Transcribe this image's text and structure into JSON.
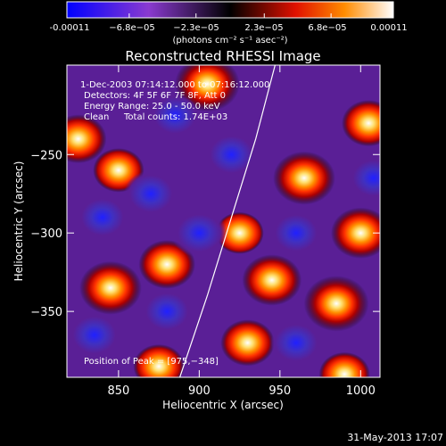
{
  "colorbar": {
    "ticks": [
      "-0.00011",
      "−6.8e−05",
      "−2.3e−05",
      "2.3e−05",
      "6.8e−05",
      "0.00011"
    ],
    "unit_label": "(photons cm⁻² s⁻¹ asec⁻²)"
  },
  "chart_data": {
    "type": "heatmap",
    "title": "Reconstructed RHESSI Image",
    "xlabel": "Heliocentric X (arcsec)",
    "ylabel": "Heliocentric Y (arcsec)",
    "xlim": [
      818,
      1012
    ],
    "ylim": [
      -392,
      -193
    ],
    "x_ticks": [
      850,
      900,
      950,
      1000
    ],
    "y_ticks": [
      -250,
      -300,
      -350
    ],
    "x_tick_labels": [
      "850",
      "900",
      "950",
      "1000"
    ],
    "y_tick_labels": [
      "−250",
      "−300",
      "−350"
    ],
    "value_range": [
      -0.00011,
      0.00011
    ],
    "info": {
      "time_range": "1-Dec-2003 07:14:12.000 to 07:16:12.000",
      "detectors": "Detectors: 4F 5F 6F 7F 8F, Att 0",
      "energy": "Energy Range: 25.0 - 50.0 keV",
      "clean": "Clean",
      "counts": "Total counts: 1.74E+03",
      "peak": "Position of Peak = [975,−348]"
    },
    "peak": [
      975,
      -348
    ],
    "limb_curve": [
      [
        947,
        -193
      ],
      [
        935,
        -240
      ],
      [
        920,
        -290
      ],
      [
        905,
        -340
      ],
      [
        888,
        -392
      ]
    ],
    "sources": [
      {
        "x": 905,
        "y": -205,
        "v": 1.0
      },
      {
        "x": 965,
        "y": -265,
        "v": 0.9
      },
      {
        "x": 985,
        "y": -345,
        "v": 1.0
      },
      {
        "x": 1000,
        "y": -300,
        "v": 0.8
      },
      {
        "x": 945,
        "y": -330,
        "v": 0.8
      },
      {
        "x": 845,
        "y": -335,
        "v": 0.9
      },
      {
        "x": 880,
        "y": -320,
        "v": 0.7
      },
      {
        "x": 825,
        "y": -240,
        "v": 0.7
      },
      {
        "x": 850,
        "y": -260,
        "v": 0.5
      },
      {
        "x": 930,
        "y": -370,
        "v": 0.6
      },
      {
        "x": 1005,
        "y": -230,
        "v": 0.6
      },
      {
        "x": 925,
        "y": -300,
        "v": 0.4
      },
      {
        "x": 875,
        "y": -385,
        "v": 0.5
      },
      {
        "x": 990,
        "y": -390,
        "v": 0.5
      },
      {
        "x": 870,
        "y": -275,
        "v": -0.6
      },
      {
        "x": 900,
        "y": -300,
        "v": -0.7
      },
      {
        "x": 840,
        "y": -290,
        "v": -0.5
      },
      {
        "x": 920,
        "y": -250,
        "v": -0.6
      },
      {
        "x": 960,
        "y": -300,
        "v": -0.4
      },
      {
        "x": 880,
        "y": -350,
        "v": -0.5
      },
      {
        "x": 835,
        "y": -365,
        "v": -0.6
      },
      {
        "x": 960,
        "y": -370,
        "v": -0.5
      },
      {
        "x": 885,
        "y": -225,
        "v": -0.4
      },
      {
        "x": 1008,
        "y": -265,
        "v": -0.3
      }
    ]
  },
  "footer": {
    "timestamp": "31-May-2013 17:07"
  }
}
